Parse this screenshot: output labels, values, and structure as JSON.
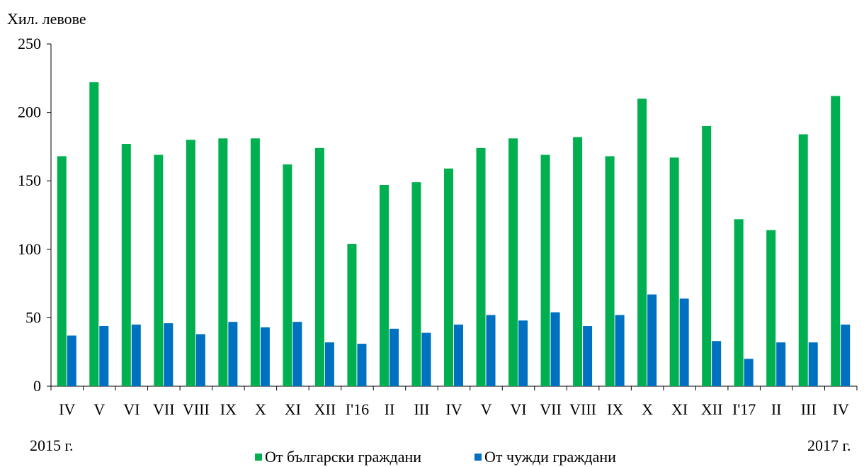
{
  "chart_data": {
    "type": "bar",
    "ylabel": "Хил. левове",
    "ylim": [
      0,
      250
    ],
    "yticks": [
      0,
      50,
      100,
      150,
      200,
      250
    ],
    "categories": [
      "IV",
      "V",
      "VI",
      "VII",
      "VIII",
      "IX",
      "X",
      "XI",
      "XII",
      "I'16",
      "II",
      "III",
      "IV",
      "V",
      "VI",
      "VII",
      "VIII",
      "IX",
      "X",
      "XI",
      "XII",
      "I'17",
      "II",
      "III",
      "IV"
    ],
    "series": [
      {
        "name": "От български граждани",
        "color": "#00b050",
        "values": [
          168,
          222,
          177,
          169,
          180,
          181,
          181,
          162,
          174,
          104,
          147,
          149,
          159,
          174,
          181,
          169,
          182,
          168,
          210,
          167,
          190,
          122,
          114,
          184,
          212
        ]
      },
      {
        "name": "От чужди граждани",
        "color": "#0070c0",
        "values": [
          37,
          44,
          45,
          46,
          38,
          47,
          43,
          47,
          32,
          31,
          42,
          39,
          45,
          52,
          48,
          54,
          44,
          52,
          67,
          64,
          33,
          20,
          32,
          32,
          45
        ]
      }
    ],
    "year_start_label": "2015 г.",
    "year_end_label": "2017 г.",
    "legend_position": "bottom-center",
    "grid": false
  }
}
